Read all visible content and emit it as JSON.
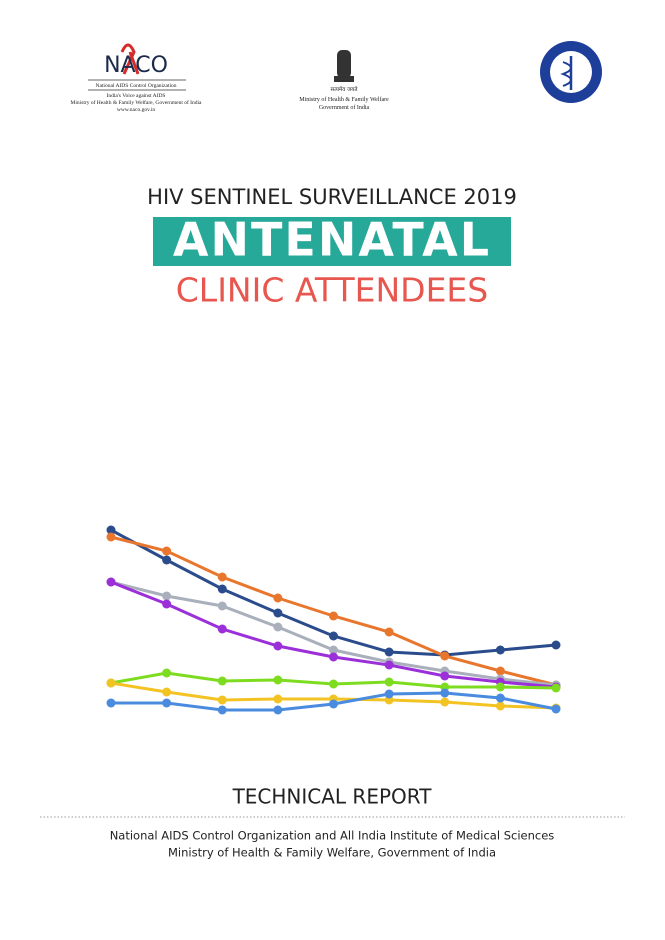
{
  "header": {
    "naco": {
      "logo": "NACO",
      "name": "National AIDS Control Organization",
      "tagline": "India's Voice against AIDS",
      "ministry": "Ministry of Health & Family Welfare, Government of India",
      "url": "www.naco.gov.in"
    },
    "emblem": {
      "motto": "सत्यमेव जयते",
      "line1": "Ministry of Health & Family Welfare",
      "line2": "Government of India"
    }
  },
  "title": {
    "kicker": "HIV SENTINEL SURVEILLANCE 2019",
    "main": "ANTENATAL",
    "sub": "CLINIC ATTENDEES"
  },
  "chart_data": {
    "type": "line",
    "categories": [
      null,
      null,
      null,
      null,
      null,
      null,
      null,
      null,
      null
    ],
    "ylim": [
      0,
      100
    ],
    "series": [
      {
        "color": "#2b4c8c",
        "values": [
          95,
          80,
          65.5,
          53.5,
          42,
          34,
          32.5,
          35,
          37.5
        ]
      },
      {
        "color": "#e8762c",
        "values": [
          91.5,
          84.5,
          71.5,
          61,
          52,
          44,
          32,
          24.5,
          17.5
        ]
      },
      {
        "color": "#a9b0bc",
        "values": [
          69,
          62,
          57,
          46.5,
          35,
          29,
          24.5,
          20.5,
          17.5
        ]
      },
      {
        "color": "#9b30d9",
        "values": [
          69,
          58,
          45.5,
          37,
          31.5,
          27.5,
          22,
          19,
          16.5
        ]
      },
      {
        "color": "#7ddc1f",
        "values": [
          18.5,
          23.5,
          19.5,
          20,
          18,
          19,
          16.5,
          16.5,
          16
        ]
      },
      {
        "color": "#f3c324",
        "values": [
          18.5,
          14,
          10,
          10.5,
          10.5,
          10,
          9,
          7,
          6
        ]
      },
      {
        "color": "#4a8be0",
        "values": [
          8.5,
          8.5,
          5,
          5,
          8,
          13,
          13.5,
          11,
          5.5
        ]
      }
    ]
  },
  "footer": {
    "report": "TECHNICAL REPORT",
    "line1": "National AIDS Control Organization and All India Institute of Medical Sciences",
    "line2": "Ministry of Health & Family Welfare, Government of India"
  }
}
